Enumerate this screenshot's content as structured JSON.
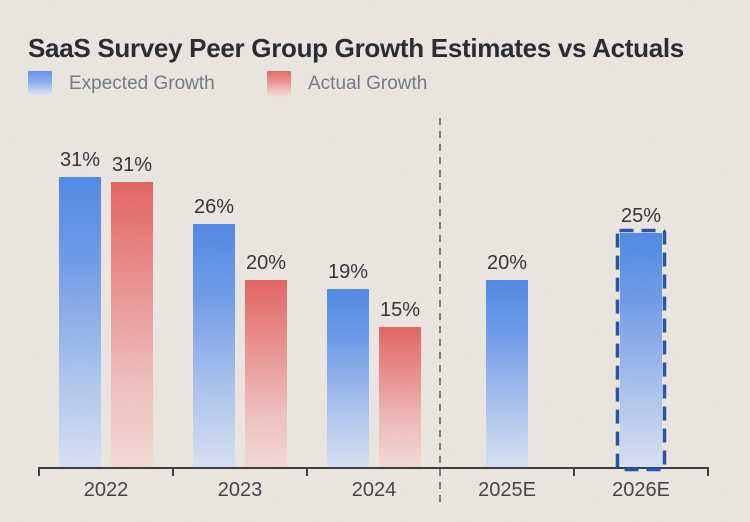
{
  "title": "SaaS Survey Peer Group Growth Estimates vs Actuals",
  "legend": {
    "items": [
      {
        "label": "Expected Growth",
        "series": "expected"
      },
      {
        "label": "Actual Growth",
        "series": "actual"
      }
    ]
  },
  "colors": {
    "background": "#EDE9E2",
    "title_text": "#20232C",
    "legend_text": "#6E7787",
    "value_label_text": "#2A2D35",
    "axis_line": "#33363C",
    "axis_label_text": "#3A3D45",
    "separator_line": "#73777F",
    "expected_gradient_top": "#4B86E8",
    "expected_gradient_bottom": "#D9E3F6",
    "actual_gradient_top": "#E56060",
    "actual_gradient_bottom": "#F6DBD7",
    "estimate_outline": "#1C4FA6"
  },
  "chart_data": {
    "type": "bar",
    "unit": "%",
    "title": "SaaS Survey Peer Group Growth Estimates vs Actuals",
    "categories": [
      "2022",
      "2023",
      "2024",
      "2025E",
      "2026E"
    ],
    "series": [
      {
        "name": "Expected Growth",
        "key": "expected",
        "values": [
          31,
          26,
          19,
          20,
          25
        ]
      },
      {
        "name": "Actual Growth",
        "key": "actual",
        "values": [
          31,
          20,
          15,
          null,
          null
        ]
      }
    ],
    "value_labels": {
      "expected": [
        "31%",
        "26%",
        "19%",
        "20%",
        "25%"
      ],
      "actual": [
        "31%",
        "20%",
        "15%",
        null,
        null
      ]
    },
    "ylim": [
      0,
      33
    ],
    "grid": false,
    "legend_position": "top-left",
    "forecast_separator_after": "2024",
    "dashed_outline_category": "2026E"
  }
}
